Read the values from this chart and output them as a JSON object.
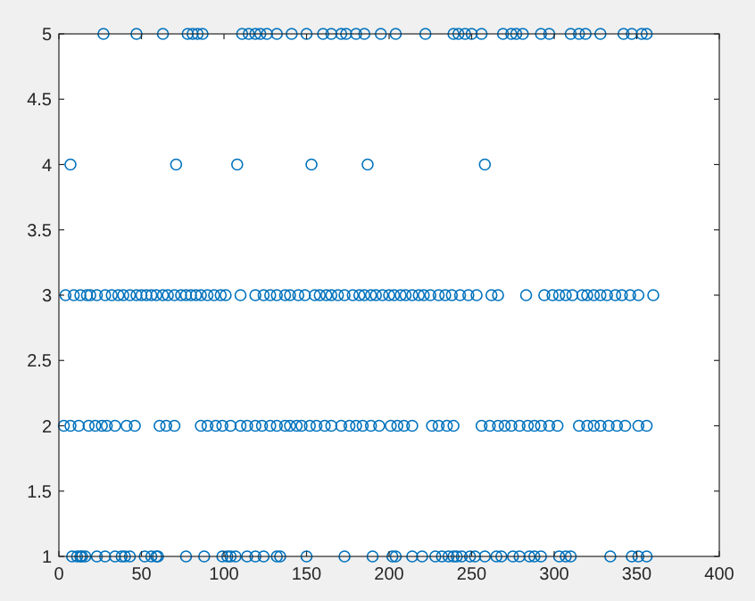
{
  "chart_data": {
    "type": "scatter",
    "marker": "circle",
    "xlim": [
      0,
      400
    ],
    "xticks": [
      0,
      50,
      100,
      150,
      200,
      250,
      300,
      350,
      400
    ],
    "ylim": [
      1,
      5
    ],
    "yticks": [
      1,
      1.5,
      2,
      2.5,
      3,
      3.5,
      4,
      4.5,
      5
    ],
    "series": [
      {
        "color": "#0072bd",
        "x": [
          27,
          47,
          63,
          78,
          81,
          84,
          87,
          111,
          115,
          119,
          122,
          126,
          132,
          141,
          150,
          160,
          165,
          171,
          174,
          180,
          185,
          195,
          204,
          222,
          239,
          242,
          246,
          250,
          256,
          269,
          274,
          277,
          281,
          292,
          297,
          310,
          315,
          319,
          328,
          342,
          347,
          353,
          356,
          7,
          71,
          108,
          153,
          187,
          258,
          4,
          9,
          13,
          17,
          19,
          23,
          28,
          32,
          36,
          39,
          43,
          47,
          50,
          53,
          56,
          59,
          63,
          66,
          70,
          74,
          77,
          80,
          83,
          86,
          90,
          94,
          98,
          101,
          110,
          119,
          124,
          128,
          132,
          137,
          140,
          145,
          149,
          155,
          158,
          162,
          165,
          169,
          173,
          178,
          182,
          185,
          189,
          192,
          196,
          200,
          203,
          207,
          210,
          214,
          218,
          221,
          225,
          230,
          234,
          238,
          243,
          248,
          253,
          262,
          266,
          283,
          294,
          299,
          303,
          307,
          311,
          317,
          320,
          324,
          328,
          332,
          337,
          341,
          346,
          351,
          360,
          3,
          7,
          12,
          18,
          22,
          26,
          29,
          34,
          41,
          46,
          61,
          65,
          70,
          86,
          90,
          95,
          99,
          104,
          110,
          114,
          119,
          123,
          128,
          132,
          137,
          140,
          144,
          147,
          152,
          156,
          161,
          165,
          171,
          176,
          180,
          184,
          189,
          194,
          201,
          205,
          209,
          214,
          226,
          230,
          235,
          239,
          256,
          261,
          266,
          270,
          274,
          279,
          284,
          288,
          292,
          297,
          302,
          315,
          320,
          324,
          328,
          333,
          338,
          343,
          351,
          356,
          8,
          11,
          13,
          14,
          16,
          23,
          28,
          34,
          38,
          40,
          43,
          52,
          56,
          59,
          60,
          77,
          88,
          99,
          102,
          104,
          107,
          114,
          119,
          124,
          132,
          134,
          150,
          173,
          190,
          202,
          204,
          214,
          220,
          228,
          232,
          236,
          239,
          241,
          244,
          249,
          252,
          258,
          265,
          268,
          275,
          279,
          285,
          288,
          292,
          303,
          307,
          310,
          334,
          347,
          351,
          356
        ],
        "values": [
          5,
          5,
          5,
          5,
          5,
          5,
          5,
          5,
          5,
          5,
          5,
          5,
          5,
          5,
          5,
          5,
          5,
          5,
          5,
          5,
          5,
          5,
          5,
          5,
          5,
          5,
          5,
          5,
          5,
          5,
          5,
          5,
          5,
          5,
          5,
          5,
          5,
          5,
          5,
          5,
          5,
          5,
          5,
          4,
          4,
          4,
          4,
          4,
          4,
          3,
          3,
          3,
          3,
          3,
          3,
          3,
          3,
          3,
          3,
          3,
          3,
          3,
          3,
          3,
          3,
          3,
          3,
          3,
          3,
          3,
          3,
          3,
          3,
          3,
          3,
          3,
          3,
          3,
          3,
          3,
          3,
          3,
          3,
          3,
          3,
          3,
          3,
          3,
          3,
          3,
          3,
          3,
          3,
          3,
          3,
          3,
          3,
          3,
          3,
          3,
          3,
          3,
          3,
          3,
          3,
          3,
          3,
          3,
          3,
          3,
          3,
          3,
          3,
          3,
          3,
          3,
          3,
          3,
          3,
          3,
          3,
          3,
          3,
          3,
          3,
          3,
          3,
          3,
          3,
          3,
          2,
          2,
          2,
          2,
          2,
          2,
          2,
          2,
          2,
          2,
          2,
          2,
          2,
          2,
          2,
          2,
          2,
          2,
          2,
          2,
          2,
          2,
          2,
          2,
          2,
          2,
          2,
          2,
          2,
          2,
          2,
          2,
          2,
          2,
          2,
          2,
          2,
          2,
          2,
          2,
          2,
          2,
          2,
          2,
          2,
          2,
          2,
          2,
          2,
          2,
          2,
          2,
          2,
          2,
          2,
          2,
          2,
          2,
          2,
          2,
          2,
          2,
          2,
          2,
          2,
          2,
          1,
          1,
          1,
          1,
          1,
          1,
          1,
          1,
          1,
          1,
          1,
          1,
          1,
          1,
          1,
          1,
          1,
          1,
          1,
          1,
          1,
          1,
          1,
          1,
          1,
          1,
          1,
          1,
          1,
          1,
          1,
          1,
          1,
          1,
          1,
          1,
          1,
          1,
          1,
          1,
          1,
          1,
          1,
          1,
          1,
          1,
          1,
          1,
          1,
          1,
          1,
          1,
          1,
          1,
          1,
          1
        ]
      }
    ]
  }
}
